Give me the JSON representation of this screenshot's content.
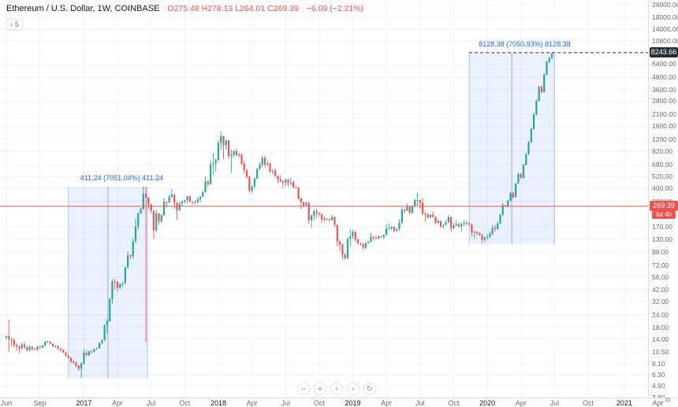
{
  "header": {
    "title": "Ethereum / U.S. Dollar, 1W, COINBASE",
    "ohlc": "O275.48 H278.13 L264.01 C269.39",
    "change": "−6.09 (−2.21%)",
    "hidden_count": "5"
  },
  "icons": {
    "chevron_right": "›",
    "minus": "−",
    "plus": "+",
    "arrow_left": "‹",
    "arrow_right": "›",
    "reset": "↻",
    "gear": "⚙"
  },
  "axis": {
    "measure_badge": "8243.66",
    "current_price_badge": "269.39",
    "countdown": "6d 4h",
    "price_ticks": [
      {
        "v": 24000,
        "label": "24000.00"
      },
      {
        "v": 18000,
        "label": "18000.00"
      },
      {
        "v": 14000,
        "label": "14000.00"
      },
      {
        "v": 10800,
        "label": "10800.00"
      },
      {
        "v": 6400,
        "label": "6400.00"
      },
      {
        "v": 4800,
        "label": "4800.00"
      },
      {
        "v": 3600,
        "label": "3600.00"
      },
      {
        "v": 2800,
        "label": "2800.00"
      },
      {
        "v": 2100,
        "label": "2100.00"
      },
      {
        "v": 1600,
        "label": "1600.00"
      },
      {
        "v": 1200,
        "label": "1200.00"
      },
      {
        "v": 920,
        "label": "920.00"
      },
      {
        "v": 680,
        "label": "680.00"
      },
      {
        "v": 520,
        "label": "520.00"
      },
      {
        "v": 400,
        "label": "400.00"
      },
      {
        "v": 300,
        "label": "300.00"
      },
      {
        "v": 170,
        "label": "170.00"
      },
      {
        "v": 130,
        "label": "130.00"
      },
      {
        "v": 98,
        "label": "98.00"
      },
      {
        "v": 72,
        "label": "72.00"
      },
      {
        "v": 56,
        "label": "56.00"
      },
      {
        "v": 42,
        "label": "42.00"
      },
      {
        "v": 32,
        "label": "32.00"
      },
      {
        "v": 24,
        "label": "24.00"
      },
      {
        "v": 18,
        "label": "18.00"
      },
      {
        "v": 14,
        "label": "14.00"
      },
      {
        "v": 10.5,
        "label": "10.50"
      },
      {
        "v": 8.1,
        "label": "8.10"
      },
      {
        "v": 6.3,
        "label": "6.30"
      },
      {
        "v": 4.9,
        "label": "4.90"
      },
      {
        "v": 3.8,
        "label": "3.80"
      }
    ],
    "time_labels": [
      {
        "label": "Jun",
        "week": 0
      },
      {
        "label": "Sep",
        "week": 13
      },
      {
        "label": "2017",
        "week": 30
      },
      {
        "label": "Apr",
        "week": 43
      },
      {
        "label": "Jul",
        "week": 56
      },
      {
        "label": "Oct",
        "week": 69
      },
      {
        "label": "2018",
        "week": 82
      },
      {
        "label": "Apr",
        "week": 95
      },
      {
        "label": "Jul",
        "week": 108
      },
      {
        "label": "Oct",
        "week": 121
      },
      {
        "label": "2019",
        "week": 134
      },
      {
        "label": "Apr",
        "week": 147
      },
      {
        "label": "Jul",
        "week": 160
      },
      {
        "label": "Oct",
        "week": 173
      },
      {
        "label": "2020",
        "week": 186
      },
      {
        "label": "Apr",
        "week": 199
      },
      {
        "label": "Jul",
        "week": 212
      },
      {
        "label": "Oct",
        "week": 225
      },
      {
        "label": "2021",
        "week": 239
      },
      {
        "label": "Apr",
        "week": 252
      }
    ]
  },
  "toolbar": {
    "zoom_out": "zoom out",
    "zoom_in": "zoom in",
    "scroll_left": "scroll left",
    "scroll_right": "scroll right",
    "reset": "reset chart"
  },
  "chart_data": {
    "type": "candlestick",
    "symbol": "Ethereum / U.S. Dollar",
    "exchange": "COINBASE",
    "interval": "1W",
    "scale": "log",
    "ylim": [
      3.8,
      24000
    ],
    "x_range": [
      "Jun 2016",
      "Apr 2021"
    ],
    "grid": true,
    "current_price": 269.39,
    "dashed_level": 8243.66,
    "colors": {
      "up": "#26a69a",
      "down": "#ef5350",
      "accent": "#2962ff"
    },
    "measure_regions": [
      {
        "label": "411.24 (7051.04%) 411.24",
        "week_start": 24,
        "week_end": 54.6,
        "price_low": 5.83,
        "price_high": 417.07
      },
      {
        "label": "8128.38 (7050.93%) 8128.38",
        "week_start": 179,
        "week_end": 212,
        "price_low": 115.28,
        "price_high": 8243.66
      }
    ],
    "candles": [
      [
        14.5,
        15.2,
        13.8,
        14.9
      ],
      [
        14.9,
        21.5,
        10.5,
        14
      ],
      [
        14,
        14.4,
        12,
        13.7
      ],
      [
        13.7,
        14.2,
        11.5,
        12.2
      ],
      [
        12.2,
        12.8,
        10.8,
        11.8
      ],
      [
        11.8,
        12.2,
        10.2,
        11.3
      ],
      [
        11.3,
        12.9,
        11,
        12.4
      ],
      [
        12.4,
        13,
        11.2,
        11.7
      ],
      [
        11.7,
        11.9,
        10.6,
        10.9
      ],
      [
        10.9,
        12.1,
        10.7,
        11.8
      ],
      [
        11.8,
        11.9,
        10.8,
        11.2
      ],
      [
        11.2,
        11.4,
        10.9,
        11.1
      ],
      [
        11.1,
        12,
        10.7,
        11.8
      ],
      [
        11.8,
        12.1,
        11.2,
        11.6
      ],
      [
        11.6,
        12.3,
        11.4,
        12.1
      ],
      [
        12.1,
        13.4,
        11.9,
        13.1
      ],
      [
        13.1,
        13.4,
        12.8,
        13.2
      ],
      [
        13.2,
        13.3,
        12.4,
        12.6
      ],
      [
        12.6,
        12.7,
        11.7,
        11.9
      ],
      [
        11.9,
        12.2,
        11.6,
        12
      ],
      [
        12,
        12.1,
        11,
        11.3
      ],
      [
        11.3,
        11.4,
        10.5,
        11
      ],
      [
        11,
        11.1,
        10.2,
        10.4
      ],
      [
        10.4,
        10.6,
        9.4,
        9.7
      ],
      [
        9.7,
        9.9,
        9,
        9.2
      ],
      [
        9.2,
        9.4,
        8.2,
        8.5
      ],
      [
        8.5,
        8.7,
        8,
        8.3
      ],
      [
        8.3,
        8.4,
        7.4,
        7.7
      ],
      [
        7.7,
        7.9,
        6.9,
        7.2
      ],
      [
        7.2,
        8.4,
        5.9,
        8.1
      ],
      [
        8.1,
        11.3,
        7.9,
        10.3
      ],
      [
        10.3,
        10.9,
        9.4,
        9.8
      ],
      [
        9.8,
        10.8,
        9.5,
        10.6
      ],
      [
        10.6,
        10.9,
        10.2,
        10.6
      ],
      [
        10.6,
        11.4,
        10.4,
        11.2
      ],
      [
        11.2,
        11.6,
        11,
        11.4
      ],
      [
        11.4,
        13,
        11.3,
        12.8
      ],
      [
        12.8,
        13.9,
        12.4,
        13.6
      ],
      [
        13.6,
        19.5,
        13.4,
        19
      ],
      [
        19,
        22,
        15.8,
        20.8
      ],
      [
        20.8,
        35,
        20.5,
        34.2
      ],
      [
        34.2,
        53,
        30.8,
        50.5
      ],
      [
        50.5,
        53.5,
        42,
        50.2
      ],
      [
        50.2,
        51,
        40.1,
        43.8
      ],
      [
        43.8,
        48.5,
        42.5,
        47.9
      ],
      [
        47.9,
        50,
        44.6,
        48.6
      ],
      [
        48.6,
        70,
        48,
        69.3
      ],
      [
        69.3,
        98,
        67,
        90.3
      ],
      [
        90.3,
        92,
        83,
        88.1
      ],
      [
        88.1,
        131,
        84,
        123.8
      ],
      [
        123.8,
        205,
        118,
        172.5
      ],
      [
        172.5,
        235,
        159,
        230
      ],
      [
        230,
        261,
        225,
        253.9
      ],
      [
        253.9,
        418,
        247,
        358
      ],
      [
        358,
        419,
        13,
        327
      ],
      [
        327,
        330,
        254,
        281
      ],
      [
        281,
        285,
        230,
        244
      ],
      [
        244,
        245,
        130,
        157
      ],
      [
        157,
        249,
        150,
        230
      ],
      [
        230,
        231,
        178,
        192
      ],
      [
        192,
        227,
        185,
        221
      ],
      [
        221,
        323,
        216,
        298
      ],
      [
        298,
        301,
        262,
        293
      ],
      [
        293,
        348,
        289,
        332
      ],
      [
        332,
        395,
        325,
        350
      ],
      [
        350,
        355,
        255,
        290
      ],
      [
        290,
        298,
        198,
        247
      ],
      [
        247,
        299,
        243,
        286
      ],
      [
        286,
        306,
        270,
        300
      ],
      [
        300,
        311,
        285,
        308
      ],
      [
        308,
        342,
        290,
        336
      ],
      [
        336,
        340,
        294,
        300
      ],
      [
        300,
        302,
        280,
        297
      ],
      [
        297,
        308,
        282,
        296
      ],
      [
        296,
        327,
        284,
        314
      ],
      [
        314,
        338,
        293,
        332
      ],
      [
        332,
        380,
        330,
        369
      ],
      [
        369,
        522,
        365,
        466
      ],
      [
        466,
        480,
        412,
        441
      ],
      [
        441,
        755,
        436,
        685
      ],
      [
        685,
        880,
        550,
        700
      ],
      [
        700,
        780,
        585,
        755
      ],
      [
        755,
        1165,
        742,
        1108
      ],
      [
        1108,
        1432,
        940,
        1286
      ],
      [
        1286,
        1300,
        770,
        1050
      ],
      [
        1050,
        1180,
        950,
        1171
      ],
      [
        1171,
        1175,
        770,
        826
      ],
      [
        826,
        950,
        565,
        855
      ],
      [
        855,
        945,
        800,
        920
      ],
      [
        920,
        980,
        820,
        838
      ],
      [
        838,
        890,
        800,
        856
      ],
      [
        856,
        860,
        675,
        695
      ],
      [
        695,
        750,
        560,
        600
      ],
      [
        600,
        620,
        500,
        520
      ],
      [
        520,
        530,
        365,
        380
      ],
      [
        380,
        430,
        361,
        420
      ],
      [
        420,
        510,
        400,
        500
      ],
      [
        500,
        630,
        490,
        620
      ],
      [
        620,
        710,
        600,
        680
      ],
      [
        680,
        830,
        640,
        795
      ],
      [
        795,
        825,
        640,
        680
      ],
      [
        680,
        740,
        655,
        700
      ],
      [
        700,
        710,
        565,
        580
      ],
      [
        580,
        620,
        545,
        590
      ],
      [
        590,
        632,
        520,
        530
      ],
      [
        530,
        540,
        450,
        490
      ],
      [
        490,
        540,
        460,
        470
      ],
      [
        470,
        480,
        404,
        455
      ],
      [
        455,
        495,
        420,
        490
      ],
      [
        490,
        495,
        420,
        450
      ],
      [
        450,
        510,
        430,
        460
      ],
      [
        460,
        480,
        405,
        410
      ],
      [
        410,
        420,
        400,
        408
      ],
      [
        408,
        415,
        310,
        320
      ],
      [
        320,
        330,
        250,
        295
      ],
      [
        295,
        300,
        265,
        275
      ],
      [
        275,
        300,
        270,
        288
      ],
      [
        288,
        300,
        180,
        197
      ],
      [
        197,
        225,
        167,
        220
      ],
      [
        220,
        250,
        195,
        242
      ],
      [
        242,
        250,
        205,
        231
      ],
      [
        231,
        235,
        215,
        225
      ],
      [
        225,
        230,
        185,
        200
      ],
      [
        200,
        215,
        192,
        205
      ],
      [
        205,
        208,
        198,
        203
      ],
      [
        203,
        205,
        190,
        199
      ],
      [
        199,
        222,
        195,
        212
      ],
      [
        212,
        214,
        170,
        178
      ],
      [
        178,
        180,
        110,
        123
      ],
      [
        123,
        126,
        100,
        115
      ],
      [
        115,
        118,
        83,
        92
      ],
      [
        92,
        95,
        82,
        85
      ],
      [
        85,
        135,
        83,
        130
      ],
      [
        130,
        160,
        110,
        138
      ],
      [
        138,
        160,
        130,
        152
      ],
      [
        152,
        155,
        122,
        128
      ],
      [
        128,
        132,
        114,
        118
      ],
      [
        118,
        120,
        112,
        116
      ],
      [
        116,
        118,
        102,
        107
      ],
      [
        107,
        120,
        103,
        119
      ],
      [
        119,
        125,
        117,
        122
      ],
      [
        122,
        149,
        120,
        136
      ],
      [
        136,
        140,
        125,
        134
      ],
      [
        134,
        140,
        128,
        132
      ],
      [
        132,
        140,
        128,
        138
      ],
      [
        138,
        140,
        132,
        136
      ],
      [
        136,
        144,
        130,
        142
      ],
      [
        142,
        180,
        140,
        164
      ],
      [
        164,
        185,
        160,
        164
      ],
      [
        164,
        174,
        158,
        171
      ],
      [
        171,
        172,
        150,
        157
      ],
      [
        157,
        165,
        152,
        163
      ],
      [
        163,
        200,
        156,
        187
      ],
      [
        187,
        265,
        182,
        250
      ],
      [
        250,
        255,
        230,
        245
      ],
      [
        245,
        285,
        242,
        266
      ],
      [
        266,
        270,
        225,
        232
      ],
      [
        232,
        275,
        228,
        268
      ],
      [
        268,
        317,
        263,
        310
      ],
      [
        310,
        364,
        275,
        310
      ],
      [
        310,
        313,
        255,
        290
      ],
      [
        290,
        322,
        222,
        228
      ],
      [
        228,
        240,
        192,
        225
      ],
      [
        225,
        230,
        205,
        210
      ],
      [
        210,
        225,
        205,
        222
      ],
      [
        222,
        240,
        210,
        212
      ],
      [
        212,
        215,
        182,
        185
      ],
      [
        185,
        202,
        183,
        194
      ],
      [
        194,
        196,
        165,
        172
      ],
      [
        172,
        182,
        165,
        178
      ],
      [
        178,
        198,
        176,
        189
      ],
      [
        189,
        223,
        185,
        211
      ],
      [
        211,
        215,
        152,
        166
      ],
      [
        166,
        185,
        162,
        176
      ],
      [
        176,
        198,
        172,
        181
      ],
      [
        181,
        188,
        168,
        172
      ],
      [
        172,
        188,
        153,
        182
      ],
      [
        182,
        198,
        174,
        184
      ],
      [
        184,
        195,
        178,
        185
      ],
      [
        185,
        190,
        176,
        180
      ],
      [
        180,
        182,
        138,
        150
      ],
      [
        150,
        158,
        132,
        152
      ],
      [
        152,
        155,
        140,
        148
      ],
      [
        148,
        151,
        140,
        142
      ],
      [
        142,
        144,
        117,
        128
      ],
      [
        128,
        138,
        121,
        134
      ],
      [
        134,
        145,
        125,
        136
      ],
      [
        136,
        153,
        132,
        145
      ],
      [
        145,
        178,
        140,
        166
      ],
      [
        166,
        178,
        152,
        162
      ],
      [
        162,
        192,
        160,
        183
      ],
      [
        183,
        227,
        180,
        223
      ],
      [
        223,
        290,
        216,
        275.5
      ],
      [
        275.48,
        278.13,
        264.01,
        269.39
      ],
      [
        269,
        312,
        262,
        305
      ],
      [
        305,
        370,
        298,
        362
      ],
      [
        362,
        373,
        320,
        331
      ],
      [
        331,
        455,
        326,
        448
      ],
      [
        448,
        570,
        442,
        552
      ],
      [
        552,
        562,
        494,
        506
      ],
      [
        506,
        695,
        500,
        678
      ],
      [
        678,
        885,
        670,
        862
      ],
      [
        862,
        1155,
        845,
        1125
      ],
      [
        1125,
        1565,
        1092,
        1512
      ],
      [
        1512,
        2160,
        1485,
        2085
      ],
      [
        2085,
        2910,
        2035,
        2825
      ],
      [
        2825,
        3960,
        2770,
        3845
      ],
      [
        3845,
        3985,
        3305,
        3425
      ],
      [
        3425,
        5210,
        3385,
        5060
      ],
      [
        5060,
        6910,
        4985,
        6710
      ],
      [
        6710,
        7500,
        6510,
        7350
      ],
      [
        7350,
        8200,
        7100,
        8050
      ]
    ]
  }
}
